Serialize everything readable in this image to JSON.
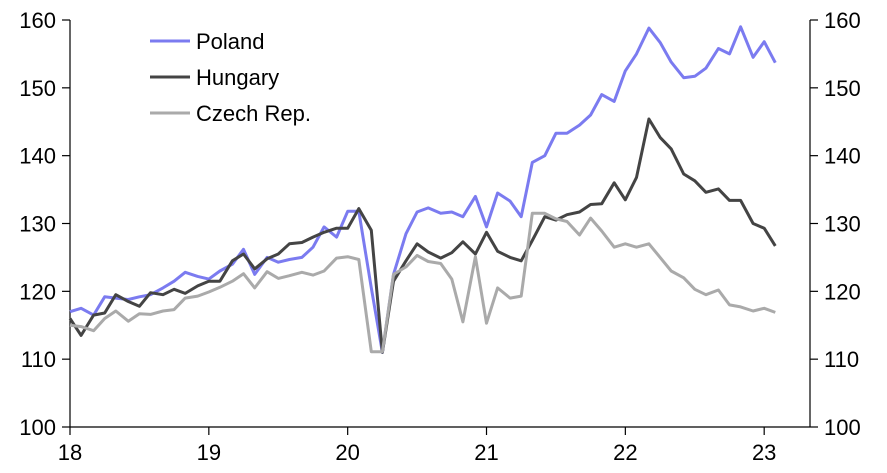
{
  "chart_data": {
    "type": "line",
    "xlim": [
      2018,
      2023.33
    ],
    "ylim": [
      100,
      160
    ],
    "x_ticks": [
      {
        "value": 2018,
        "label": "18"
      },
      {
        "value": 2019,
        "label": "19"
      },
      {
        "value": 2020,
        "label": "20"
      },
      {
        "value": 2021,
        "label": "21"
      },
      {
        "value": 2022,
        "label": "22"
      },
      {
        "value": 2023,
        "label": "23"
      }
    ],
    "y_ticks": [
      100,
      110,
      120,
      130,
      140,
      150,
      160
    ],
    "legend_position": "top-left",
    "grid": false,
    "series": [
      {
        "name": "Poland",
        "color": "#7b7bf0",
        "x": [
          2018.0,
          2018.08,
          2018.17,
          2018.25,
          2018.33,
          2018.42,
          2018.5,
          2018.58,
          2018.67,
          2018.75,
          2018.83,
          2018.92,
          2019.0,
          2019.08,
          2019.17,
          2019.25,
          2019.33,
          2019.42,
          2019.5,
          2019.58,
          2019.67,
          2019.75,
          2019.83,
          2019.92,
          2020.0,
          2020.08,
          2020.17,
          2020.25,
          2020.33,
          2020.42,
          2020.5,
          2020.58,
          2020.67,
          2020.75,
          2020.83,
          2020.92,
          2021.0,
          2021.08,
          2021.17,
          2021.25,
          2021.33,
          2021.42,
          2021.5,
          2021.58,
          2021.67,
          2021.75,
          2021.83,
          2021.92,
          2022.0,
          2022.08,
          2022.17,
          2022.25,
          2022.33,
          2022.42,
          2022.5,
          2022.58,
          2022.67,
          2022.75,
          2022.83,
          2022.92,
          2023.0,
          2023.08
        ],
        "values": [
          117.0,
          117.5,
          116.5,
          119.2,
          119.0,
          118.8,
          119.2,
          119.5,
          120.5,
          121.5,
          122.8,
          122.2,
          121.8,
          123.0,
          124.0,
          126.2,
          122.5,
          125.0,
          124.3,
          124.7,
          125.0,
          126.5,
          129.5,
          128.0,
          131.8,
          131.8,
          120.5,
          111.0,
          122.5,
          128.5,
          131.7,
          132.3,
          131.5,
          131.7,
          131.0,
          134.0,
          129.5,
          134.5,
          133.3,
          131.0,
          139.0,
          140.0,
          143.3,
          143.3,
          144.5,
          146.0,
          149.0,
          148.0,
          152.5,
          155.0,
          158.8,
          156.7,
          153.8,
          151.5,
          151.7,
          152.9,
          155.8,
          155.0,
          159.0,
          154.5,
          156.8,
          153.7
        ]
      },
      {
        "name": "Hungary",
        "color": "#444444",
        "x": [
          2018.0,
          2018.08,
          2018.17,
          2018.25,
          2018.33,
          2018.42,
          2018.5,
          2018.58,
          2018.67,
          2018.75,
          2018.83,
          2018.92,
          2019.0,
          2019.08,
          2019.17,
          2019.25,
          2019.33,
          2019.42,
          2019.5,
          2019.58,
          2019.67,
          2019.75,
          2019.83,
          2019.92,
          2020.0,
          2020.08,
          2020.17,
          2020.25,
          2020.33,
          2020.42,
          2020.5,
          2020.58,
          2020.67,
          2020.75,
          2020.83,
          2020.92,
          2021.0,
          2021.08,
          2021.17,
          2021.25,
          2021.33,
          2021.42,
          2021.5,
          2021.58,
          2021.67,
          2021.75,
          2021.83,
          2021.92,
          2022.0,
          2022.08,
          2022.17,
          2022.25,
          2022.33,
          2022.42,
          2022.5,
          2022.58,
          2022.67,
          2022.75,
          2022.83,
          2022.92,
          2023.0,
          2023.08
        ],
        "values": [
          116.0,
          113.5,
          116.5,
          116.8,
          119.5,
          118.5,
          117.8,
          119.8,
          119.5,
          120.3,
          119.7,
          120.8,
          121.5,
          121.5,
          124.5,
          125.5,
          123.3,
          124.8,
          125.5,
          127.0,
          127.2,
          128.0,
          128.7,
          129.3,
          129.3,
          132.2,
          129.0,
          111.0,
          121.5,
          124.5,
          127.0,
          125.8,
          124.9,
          125.7,
          127.3,
          125.5,
          128.7,
          125.9,
          125.0,
          124.5,
          127.5,
          131.0,
          130.5,
          131.3,
          131.7,
          132.8,
          132.9,
          136.0,
          133.5,
          136.8,
          145.4,
          142.7,
          141.0,
          137.3,
          136.3,
          134.6,
          135.1,
          133.4,
          133.4,
          130.0,
          129.3,
          126.7
        ]
      },
      {
        "name": "Czech Rep.",
        "color": "#aaaaaa",
        "x": [
          2018.0,
          2018.08,
          2018.17,
          2018.25,
          2018.33,
          2018.42,
          2018.5,
          2018.58,
          2018.67,
          2018.75,
          2018.83,
          2018.92,
          2019.0,
          2019.08,
          2019.17,
          2019.25,
          2019.33,
          2019.42,
          2019.5,
          2019.58,
          2019.67,
          2019.75,
          2019.83,
          2019.92,
          2020.0,
          2020.08,
          2020.17,
          2020.25,
          2020.33,
          2020.42,
          2020.5,
          2020.58,
          2020.67,
          2020.75,
          2020.83,
          2020.92,
          2021.0,
          2021.08,
          2021.17,
          2021.25,
          2021.33,
          2021.42,
          2021.5,
          2021.58,
          2021.67,
          2021.75,
          2021.83,
          2021.92,
          2022.0,
          2022.08,
          2022.17,
          2022.25,
          2022.33,
          2022.42,
          2022.5,
          2022.58,
          2022.67,
          2022.75,
          2022.83,
          2022.92,
          2023.0,
          2023.08
        ],
        "values": [
          115.0,
          114.8,
          114.2,
          116.0,
          117.1,
          115.6,
          116.7,
          116.6,
          117.1,
          117.3,
          119.0,
          119.3,
          119.9,
          120.6,
          121.5,
          122.6,
          120.5,
          122.9,
          121.9,
          122.3,
          122.8,
          122.4,
          123.0,
          124.9,
          125.1,
          124.7,
          111.1,
          111.1,
          122.5,
          123.6,
          125.3,
          124.4,
          124.1,
          121.8,
          115.5,
          125.1,
          115.3,
          120.5,
          119.0,
          119.3,
          131.5,
          131.5,
          130.7,
          130.3,
          128.3,
          130.8,
          128.9,
          126.5,
          127.0,
          126.5,
          127.0,
          125.0,
          123.0,
          122.0,
          120.3,
          119.5,
          120.2,
          118.0,
          117.7,
          117.1,
          117.5,
          116.9
        ]
      }
    ]
  }
}
